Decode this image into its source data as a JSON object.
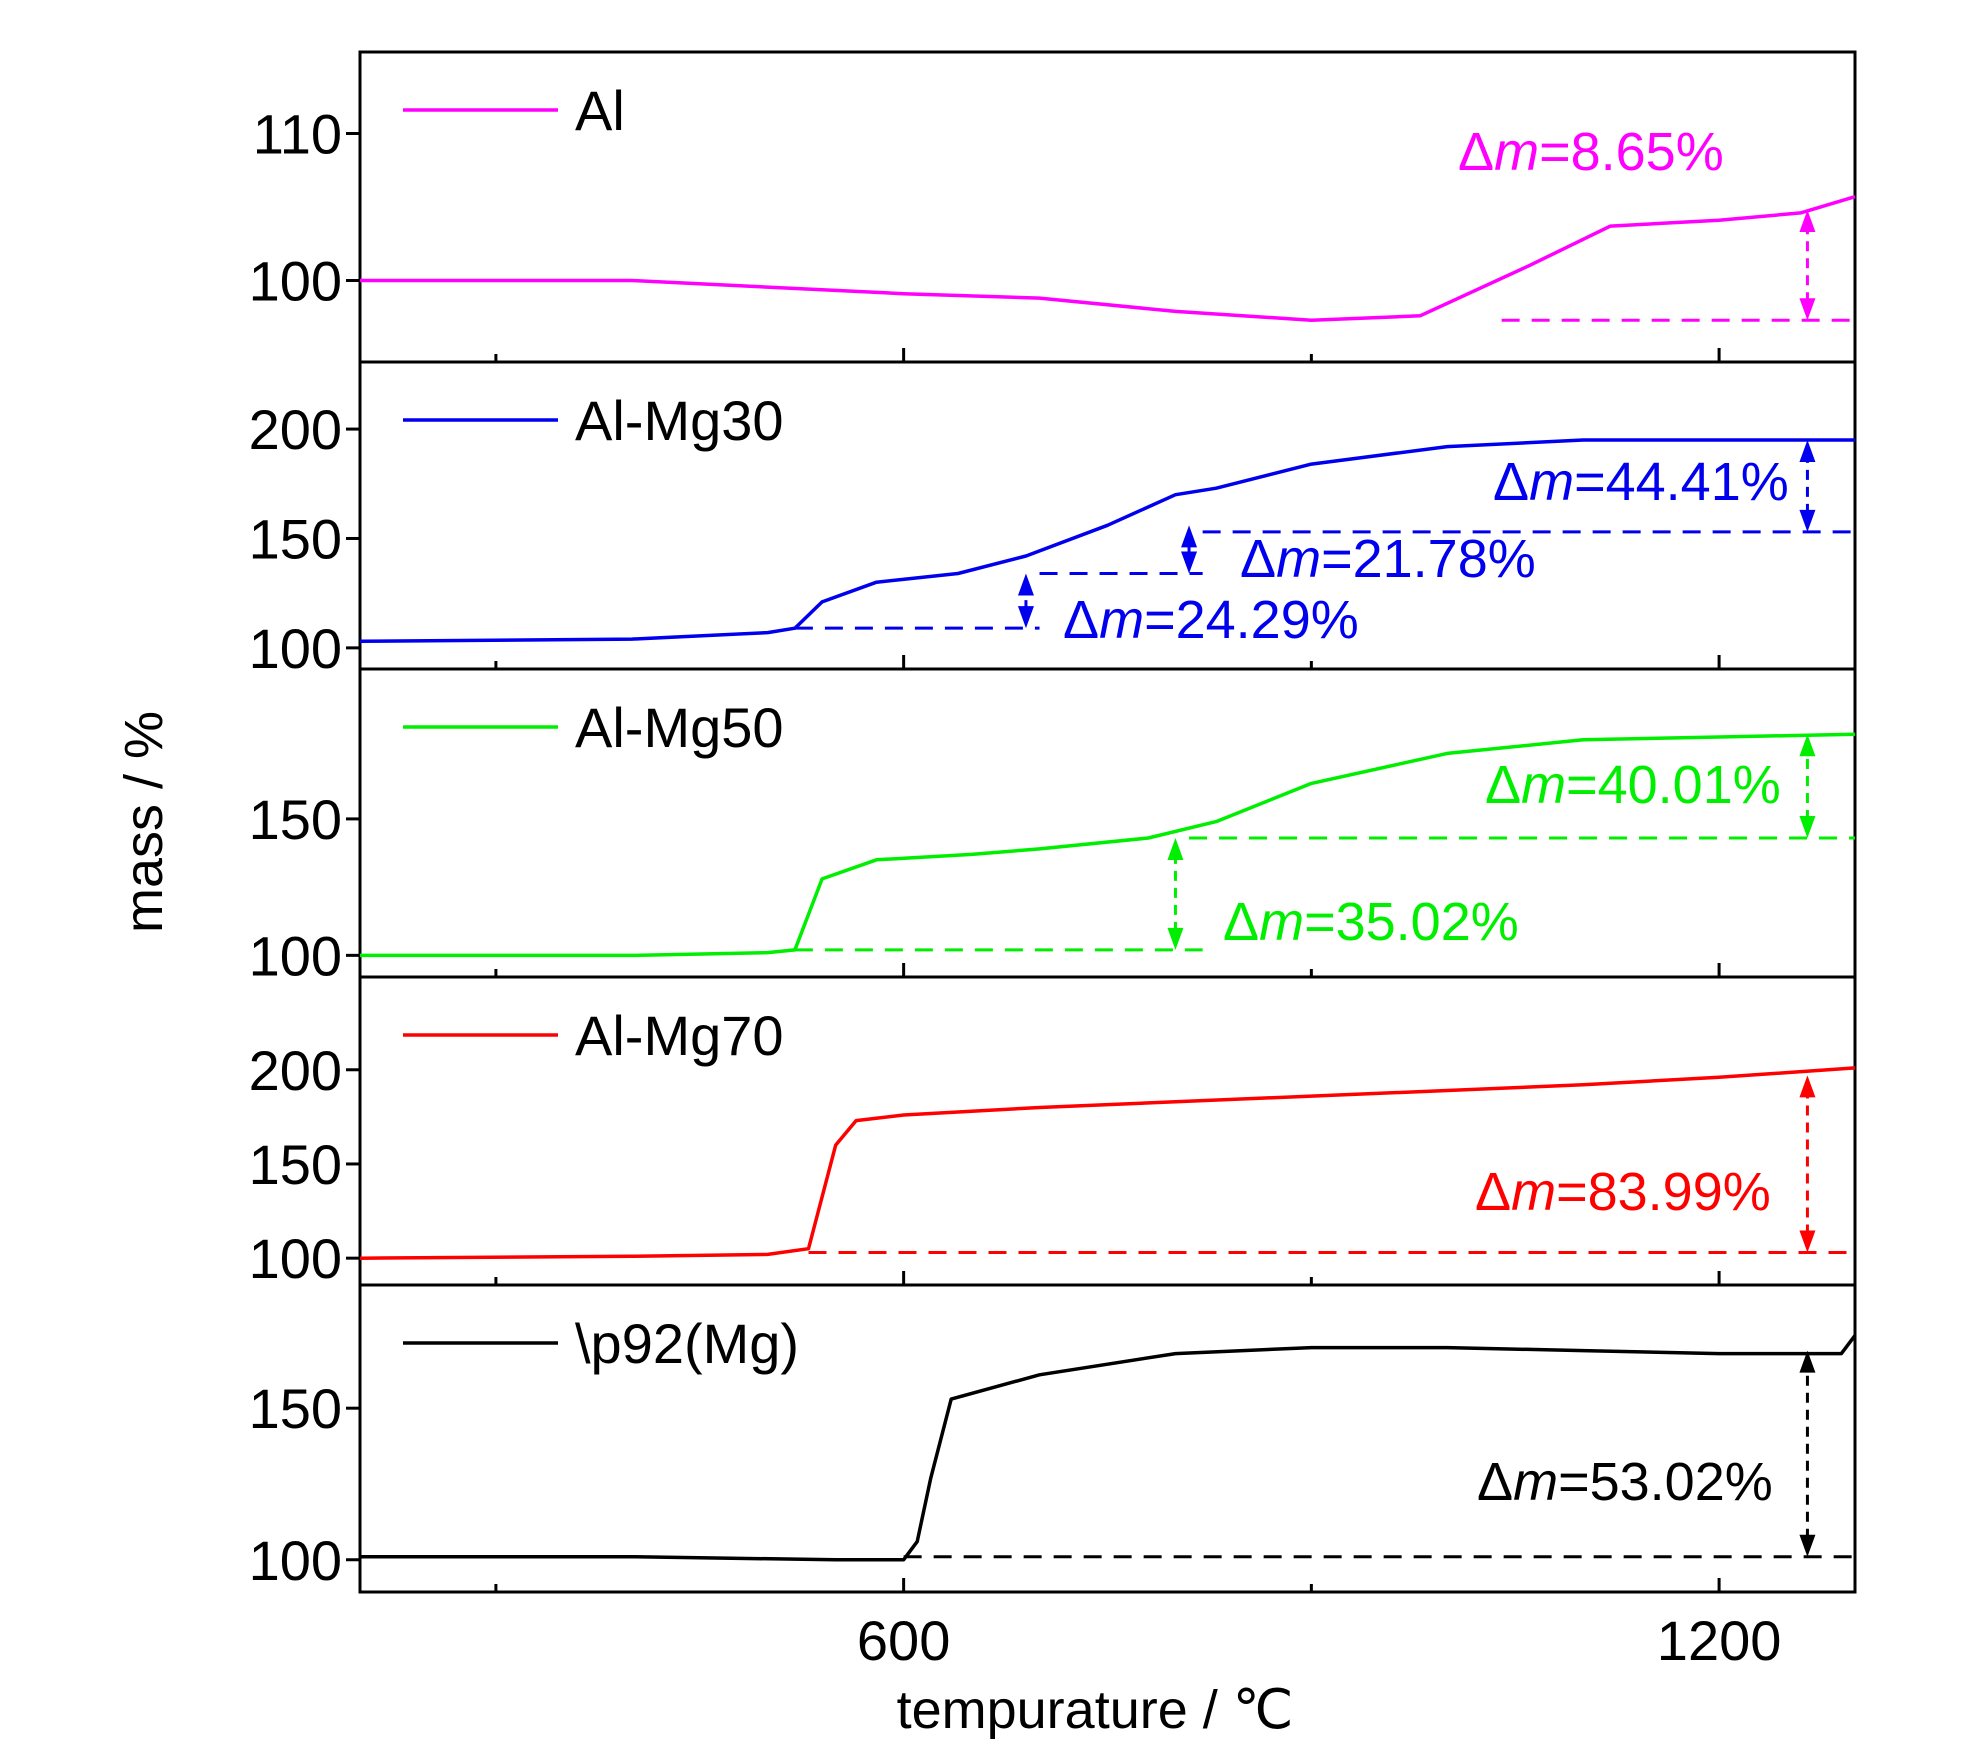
{
  "chart_data": {
    "type": "line",
    "xlabel": "tempurature / ℃",
    "ylabel": "mass / %",
    "xlim": [
      200,
      1300
    ],
    "xticks": [
      600,
      1200
    ],
    "xminor": [
      300,
      900
    ],
    "grid": false,
    "legend_position": "top-left",
    "panels": [
      {
        "name": "Al",
        "color": "#ff00ff",
        "ylim": [
          95,
          115
        ],
        "yticks": [
          100,
          110
        ],
        "x": [
          200,
          400,
          600,
          700,
          800,
          900,
          980,
          1060,
          1120,
          1200,
          1260,
          1300
        ],
        "y": [
          100,
          100,
          99.1,
          98.8,
          97.9,
          97.3,
          97.6,
          101.0,
          103.7,
          104.1,
          104.6,
          105.7
        ],
        "annotations": [
          {
            "label": "Δ",
            "italic": "m",
            "value": "=8.65%",
            "x": 1265,
            "y_from": 97.3,
            "y_to": 104.8,
            "ref_from_x": 1040,
            "ref_to_x": 1300
          }
        ]
      },
      {
        "name": "Al-Mg30",
        "color": "#0000ee",
        "ylim": [
          94,
          227
        ],
        "yticks": [
          100,
          150,
          200
        ],
        "x": [
          200,
          400,
          500,
          520,
          540,
          580,
          640,
          690,
          750,
          800,
          830,
          900,
          1000,
          1100,
          1200,
          1300
        ],
        "y": [
          103,
          104,
          107,
          109,
          121,
          130,
          134,
          142,
          156,
          170,
          173,
          184,
          192,
          195,
          195,
          195
        ],
        "annotations": [
          {
            "label": "Δ",
            "italic": "m",
            "value": "=24.29%",
            "x": 690,
            "y_from": 109,
            "y_to": 134,
            "ref_from_x": 520,
            "ref_to_x": 700
          },
          {
            "label": "Δ",
            "italic": "m",
            "value": "=21.78%",
            "x": 810,
            "y_from": 134,
            "y_to": 156,
            "ref_from_x": 700,
            "ref_to_x": 820
          },
          {
            "label": "Δ",
            "italic": "m",
            "value": "=44.41%",
            "x": 1265,
            "y_from": 153,
            "y_to": 195,
            "ref_from_x": 820,
            "ref_to_x": 1300
          }
        ]
      },
      {
        "name": "Al-Mg50",
        "color": "#00ee00",
        "ylim": [
          95,
          202
        ],
        "yticks": [
          100,
          150
        ],
        "x": [
          200,
          400,
          500,
          520,
          540,
          580,
          650,
          700,
          780,
          830,
          900,
          1000,
          1100,
          1200,
          1300
        ],
        "y": [
          100,
          100,
          101,
          102,
          128,
          135,
          137,
          139,
          143,
          149,
          163,
          174,
          179,
          180,
          181
        ],
        "annotations": [
          {
            "label": "Δ",
            "italic": "m",
            "value": "=35.02%",
            "x": 800,
            "y_from": 102,
            "y_to": 143,
            "ref_from_x": 520,
            "ref_to_x": 820
          },
          {
            "label": "Δ",
            "italic": "m",
            "value": "=40.01%",
            "x": 1265,
            "y_from": 143,
            "y_to": 181,
            "ref_from_x": 810,
            "ref_to_x": 1300
          }
        ]
      },
      {
        "name": "Al-Mg70",
        "color": "#ff0000",
        "ylim": [
          90,
          245
        ],
        "yticks": [
          100,
          150,
          200
        ],
        "x": [
          200,
          400,
          500,
          530,
          550,
          565,
          600,
          700,
          800,
          900,
          1000,
          1100,
          1200,
          1300
        ],
        "y": [
          100,
          101,
          102,
          105,
          160,
          173,
          176,
          180,
          183,
          186,
          189,
          192,
          196,
          201
        ],
        "annotations": [
          {
            "label": "Δ",
            "italic": "m",
            "value": "=83.99%",
            "x": 1265,
            "y_from": 103,
            "y_to": 197,
            "ref_from_x": 530,
            "ref_to_x": 1300
          }
        ]
      },
      {
        "name": "\\p92(Mg)",
        "color": "#000000",
        "ylim": [
          92,
          188
        ],
        "yticks": [
          100,
          150
        ],
        "x": [
          200,
          400,
          550,
          600,
          610,
          620,
          635,
          700,
          800,
          900,
          1000,
          1100,
          1200,
          1290,
          1300
        ],
        "y": [
          101,
          101,
          100,
          100,
          106,
          127,
          153,
          161,
          168,
          170,
          170,
          169,
          168,
          168,
          174
        ],
        "annotations": [
          {
            "label": "Δ",
            "italic": "m",
            "value": "=53.02%",
            "x": 1265,
            "y_from": 101,
            "y_to": 169,
            "ref_from_x": 600,
            "ref_to_x": 1300
          }
        ]
      }
    ]
  }
}
